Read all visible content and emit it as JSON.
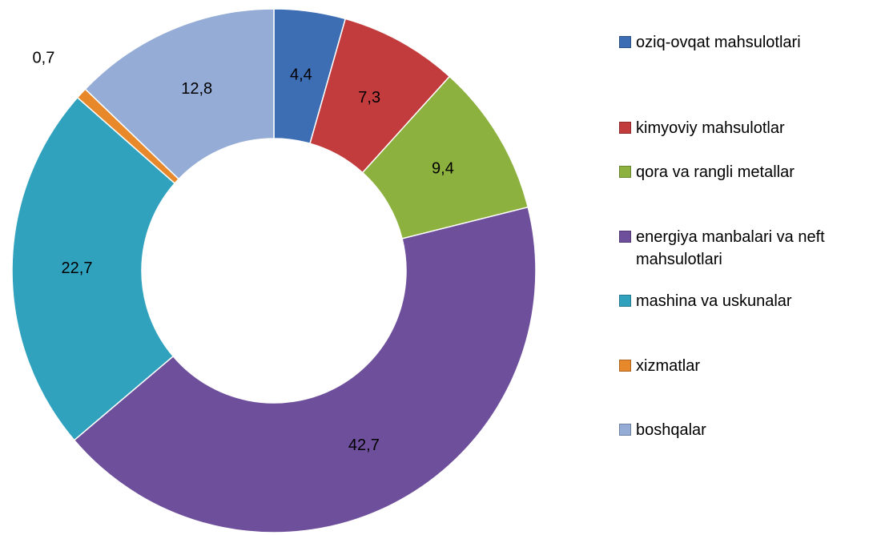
{
  "chart_data": {
    "type": "donut",
    "categories": [
      "oziq-ovqat mahsulotlari",
      "kimyoviy mahsulotlar",
      "qora va rangli metallar",
      "energiya manbalari va neft mahsulotlari",
      "mashina va uskunalar",
      "xizmatlar",
      "boshqalar"
    ],
    "values": [
      4.4,
      7.3,
      9.4,
      42.7,
      22.7,
      0.7,
      12.8
    ],
    "value_labels": [
      "4,4",
      "7,3",
      "9,4",
      "42,7",
      "22,7",
      "0,7",
      "12,8"
    ],
    "colors": [
      "#3d6db3",
      "#c23b3d",
      "#8cb13e",
      "#6e4f9b",
      "#30a2be",
      "#e7882b",
      "#94acd6"
    ],
    "legend": "right"
  }
}
